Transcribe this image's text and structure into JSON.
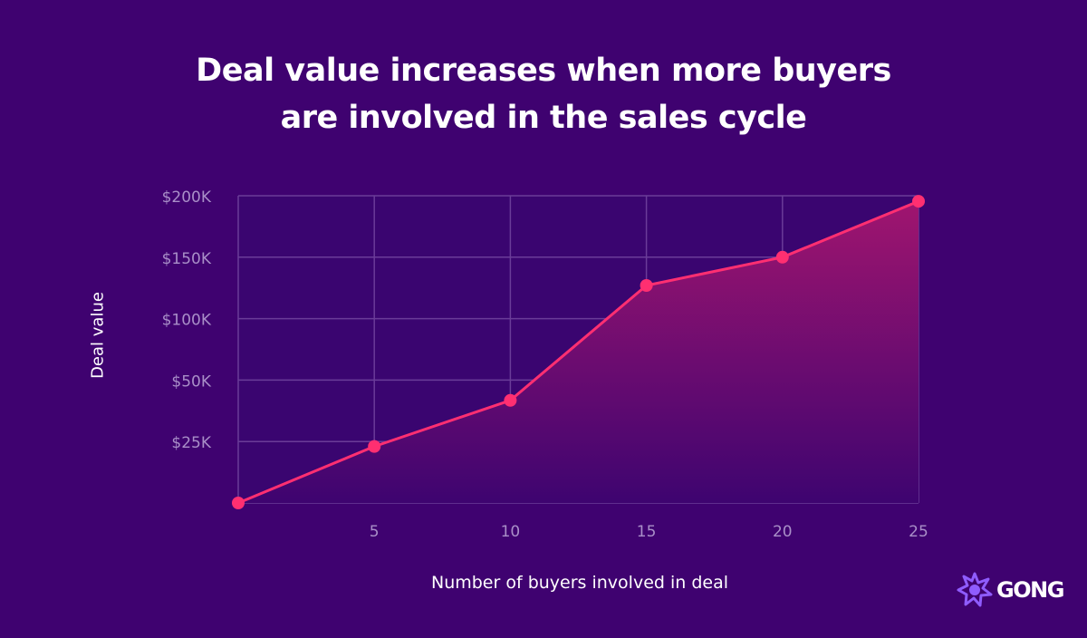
{
  "colors": {
    "background": "#3f0270",
    "plot_background": "#3a0570",
    "grid": "#6a3c98",
    "line": "#ff2f71",
    "marker": "#ff2f71",
    "area_top": "#a0156f",
    "area_bottom": "#3e0470",
    "tick_text": "#a98fc8",
    "text": "#ffffff"
  },
  "title_lines": [
    "Deal value increases when more buyers",
    "are involved in the sales cycle"
  ],
  "logo": {
    "text": "GONG",
    "icon": "gong-burst-icon"
  },
  "chart_data": {
    "type": "area",
    "title": "Deal value increases when more buyers are involved in the sales cycle",
    "xlabel": "Number of buyers involved in deal",
    "ylabel": "Deal value",
    "x": [
      0,
      5,
      10,
      15,
      20,
      25
    ],
    "x_ticks": [
      5,
      10,
      15,
      20,
      25
    ],
    "x_tick_labels": [
      "5",
      "10",
      "15",
      "20",
      "25"
    ],
    "xlim": [
      0,
      25
    ],
    "y_ticks": [
      "$25K",
      "$50K",
      "$100K",
      "$150K",
      "$200K"
    ],
    "y_tick_note": "y-axis is ordinal: ticks evenly spaced, labels $25K, $50K, $100K, $150K, $200K",
    "ylim_index": [
      0,
      5
    ],
    "series": [
      {
        "values_tick_index": [
          0.0,
          0.92,
          1.67,
          3.54,
          4.0,
          4.91
        ]
      }
    ],
    "grid": true,
    "legend": "none"
  }
}
